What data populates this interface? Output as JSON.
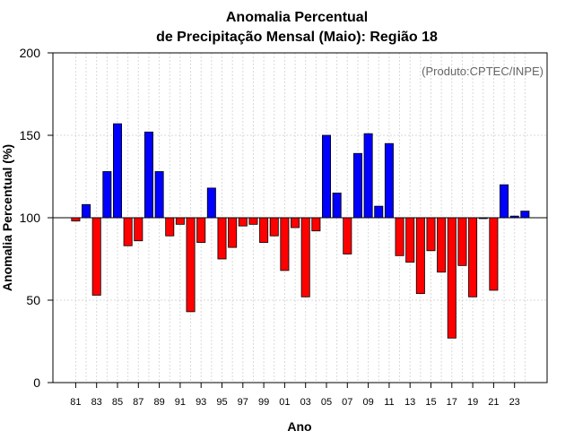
{
  "chart_data": {
    "type": "bar",
    "title_line1": "Anomalia Percentual",
    "title_line2": "de Precipitação Mensal (Maio): Região 18",
    "xlabel": "Ano",
    "ylabel": "Anomalia Percentual (%)",
    "annotation": "(Produto:CPTEC/INPE)",
    "baseline": 100,
    "ylim": [
      0,
      200
    ],
    "yticks": [
      0,
      50,
      100,
      150,
      200
    ],
    "grid": true,
    "colors": {
      "above": "#0000ff",
      "below": "#ff0000",
      "axis": "#000000",
      "grid": "#d9d9d9"
    },
    "categories": [
      "81",
      "82",
      "83",
      "84",
      "85",
      "86",
      "87",
      "88",
      "89",
      "90",
      "91",
      "92",
      "93",
      "94",
      "95",
      "96",
      "97",
      "98",
      "99",
      "00",
      "01",
      "02",
      "03",
      "04",
      "05",
      "06",
      "07",
      "08",
      "09",
      "10",
      "11",
      "12",
      "13",
      "14",
      "15",
      "16",
      "17",
      "18",
      "19",
      "20",
      "21",
      "22",
      "23",
      "24"
    ],
    "xtick_labels": [
      "81",
      "83",
      "85",
      "87",
      "89",
      "91",
      "93",
      "95",
      "97",
      "99",
      "01",
      "03",
      "05",
      "07",
      "09",
      "11",
      "13",
      "15",
      "17",
      "19",
      "21",
      "23"
    ],
    "values": [
      98,
      108,
      53,
      128,
      157,
      83,
      86,
      152,
      128,
      89,
      96,
      43,
      85,
      118,
      75,
      82,
      95,
      96,
      85,
      89,
      68,
      94,
      52,
      92,
      150,
      115,
      78,
      139,
      151,
      107,
      145,
      77,
      73,
      54,
      80,
      67,
      27,
      71,
      52,
      100,
      56,
      120,
      101,
      104
    ]
  }
}
